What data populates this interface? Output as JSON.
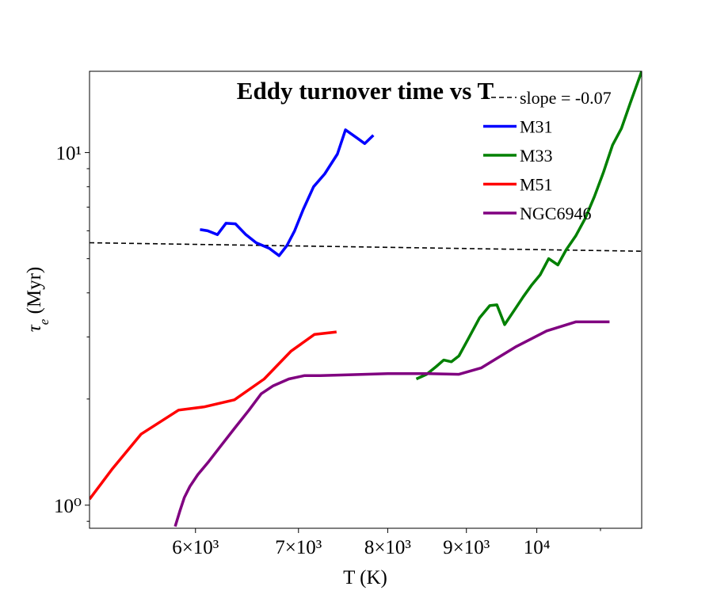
{
  "chart_data": {
    "type": "line",
    "title": "Eddy turnover time vs T",
    "xlabel": "T (K)",
    "ylabel": "τe (Myr)",
    "x_scale": "log",
    "y_scale": "log",
    "xlim": [
      5120,
      11700
    ],
    "ylim": [
      0.86,
      17.0
    ],
    "x_ticks": [
      {
        "value": 6000,
        "label": "6×10³"
      },
      {
        "value": 7000,
        "label": "7×10³"
      },
      {
        "value": 8000,
        "label": "8×10³"
      },
      {
        "value": 9000,
        "label": "9×10³"
      },
      {
        "value": 10000,
        "label": "10⁴"
      }
    ],
    "y_ticks": [
      {
        "value": 1,
        "label": "10⁰"
      },
      {
        "value": 10,
        "label": "10¹"
      }
    ],
    "legend_position": "top-right",
    "series": [
      {
        "name": "slope = -0.07",
        "color": "#000000",
        "dashed": true,
        "x": [
          5120,
          11700
        ],
        "y": [
          5.55,
          5.25
        ]
      },
      {
        "name": "M31",
        "color": "#0000ff",
        "x": [
          6040,
          6110,
          6200,
          6280,
          6370,
          6470,
          6570,
          6700,
          6800,
          6880,
          6960,
          7050,
          7160,
          7280,
          7420,
          7510,
          7640,
          7730,
          7830
        ],
        "y": [
          6.05,
          6.0,
          5.85,
          6.3,
          6.28,
          5.85,
          5.55,
          5.35,
          5.1,
          5.45,
          6.0,
          6.9,
          8.0,
          8.7,
          9.9,
          11.6,
          11.0,
          10.6,
          11.2
        ]
      },
      {
        "name": "M33",
        "color": "#008000",
        "x": [
          8350,
          8480,
          8600,
          8700,
          8800,
          8900,
          9020,
          9180,
          9320,
          9420,
          9530,
          9680,
          9800,
          9920,
          10050,
          10180,
          10320,
          10450,
          10600,
          10750,
          10900,
          11050,
          11200,
          11350,
          11500,
          11700
        ],
        "y": [
          2.28,
          2.35,
          2.47,
          2.58,
          2.55,
          2.65,
          2.95,
          3.4,
          3.68,
          3.7,
          3.25,
          3.6,
          3.9,
          4.2,
          4.5,
          5.0,
          4.8,
          5.3,
          5.8,
          6.5,
          7.5,
          8.8,
          10.5,
          11.7,
          13.8,
          17.0
        ]
      },
      {
        "name": "M51",
        "color": "#ff0000",
        "x": [
          5120,
          5300,
          5530,
          5850,
          6080,
          6360,
          6650,
          6920,
          7170,
          7410
        ],
        "y": [
          1.04,
          1.27,
          1.59,
          1.86,
          1.9,
          1.99,
          2.28,
          2.73,
          3.05,
          3.1
        ]
      },
      {
        "name": "NGC6946",
        "color": "#800080",
        "x": [
          5820,
          5860,
          5900,
          5950,
          6020,
          6120,
          6230,
          6360,
          6500,
          6620,
          6740,
          6900,
          7060,
          7230,
          7500,
          8000,
          8500,
          8900,
          9200,
          9700,
          10150,
          10600,
          11150
        ],
        "y": [
          0.87,
          0.96,
          1.05,
          1.13,
          1.22,
          1.33,
          1.47,
          1.65,
          1.86,
          2.07,
          2.18,
          2.28,
          2.33,
          2.33,
          2.34,
          2.36,
          2.36,
          2.35,
          2.45,
          2.82,
          3.12,
          3.31,
          3.31
        ]
      }
    ]
  }
}
